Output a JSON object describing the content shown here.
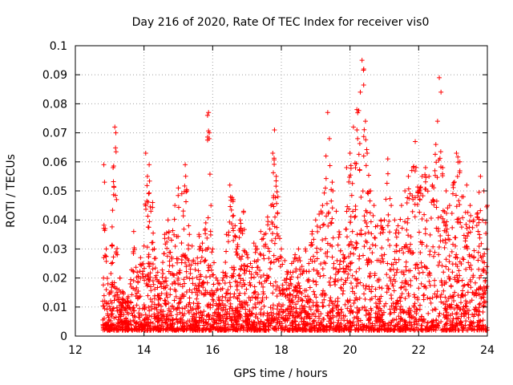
{
  "chart_data": {
    "type": "scatter",
    "title": "Day 216 of 2020, Rate Of TEC Index for receiver vis0",
    "xlabel": "GPS time / hours",
    "ylabel": "ROTI / TECUs",
    "xlim": [
      12,
      24
    ],
    "ylim": [
      0,
      0.1
    ],
    "x_ticks": [
      "12",
      "14",
      "16",
      "18",
      "20",
      "22",
      "24"
    ],
    "y_ticks": [
      "0",
      "0.01",
      "0.02",
      "0.03",
      "0.04",
      "0.05",
      "0.06",
      "0.07",
      "0.08",
      "0.09",
      "0.1"
    ],
    "grid": true,
    "marker": "+",
    "marker_color": "#ff0000",
    "series": [
      {
        "name": "ROTI",
        "note": "dense scatter of several thousand points; representative envelope of the data",
        "x": [
          12.8,
          12.82,
          12.83,
          12.85,
          12.87,
          12.9,
          12.95,
          13.0,
          13.05,
          13.1,
          13.15,
          13.18,
          13.2,
          13.22,
          13.3,
          13.4,
          13.5,
          13.6,
          13.7,
          13.8,
          13.9,
          14.0,
          14.05,
          14.1,
          14.15,
          14.2,
          14.25,
          14.3,
          14.4,
          14.5,
          14.6,
          14.7,
          14.8,
          14.9,
          15.0,
          15.1,
          15.2,
          15.25,
          15.3,
          15.4,
          15.5,
          15.6,
          15.7,
          15.8,
          15.85,
          15.88,
          15.9,
          15.95,
          16.0,
          16.1,
          16.2,
          16.3,
          16.4,
          16.5,
          16.6,
          16.7,
          16.8,
          16.9,
          17.0,
          17.1,
          17.2,
          17.3,
          17.4,
          17.5,
          17.6,
          17.7,
          17.75,
          17.8,
          17.85,
          17.9,
          18.0,
          18.1,
          18.2,
          18.3,
          18.4,
          18.5,
          18.6,
          18.7,
          18.8,
          18.9,
          19.0,
          19.1,
          19.2,
          19.3,
          19.35,
          19.4,
          19.5,
          19.6,
          19.7,
          19.8,
          19.9,
          20.0,
          20.1,
          20.2,
          20.3,
          20.35,
          20.4,
          20.45,
          20.5,
          20.6,
          20.7,
          20.8,
          20.9,
          21.0,
          21.1,
          21.2,
          21.3,
          21.4,
          21.5,
          21.6,
          21.7,
          21.8,
          21.9,
          22.0,
          22.1,
          22.2,
          22.3,
          22.4,
          22.5,
          22.55,
          22.6,
          22.65,
          22.7,
          22.8,
          22.9,
          23.0,
          23.1,
          23.2,
          23.3,
          23.4,
          23.5,
          23.6,
          23.7,
          23.8,
          23.9,
          24.0
        ],
        "y": [
          0.012,
          0.02,
          0.059,
          0.053,
          0.037,
          0.03,
          0.018,
          0.015,
          0.025,
          0.058,
          0.072,
          0.07,
          0.047,
          0.028,
          0.02,
          0.015,
          0.012,
          0.018,
          0.036,
          0.022,
          0.027,
          0.031,
          0.063,
          0.055,
          0.059,
          0.043,
          0.046,
          0.03,
          0.022,
          0.018,
          0.035,
          0.04,
          0.033,
          0.045,
          0.051,
          0.049,
          0.059,
          0.05,
          0.038,
          0.031,
          0.025,
          0.035,
          0.032,
          0.039,
          0.076,
          0.077,
          0.07,
          0.045,
          0.03,
          0.02,
          0.018,
          0.022,
          0.035,
          0.052,
          0.047,
          0.03,
          0.04,
          0.043,
          0.028,
          0.025,
          0.032,
          0.03,
          0.036,
          0.035,
          0.041,
          0.045,
          0.063,
          0.071,
          0.055,
          0.048,
          0.03,
          0.026,
          0.022,
          0.025,
          0.028,
          0.03,
          0.024,
          0.03,
          0.025,
          0.036,
          0.04,
          0.042,
          0.045,
          0.062,
          0.077,
          0.068,
          0.05,
          0.043,
          0.035,
          0.028,
          0.058,
          0.063,
          0.072,
          0.078,
          0.084,
          0.095,
          0.092,
          0.074,
          0.063,
          0.05,
          0.045,
          0.038,
          0.04,
          0.04,
          0.061,
          0.045,
          0.04,
          0.038,
          0.045,
          0.05,
          0.055,
          0.057,
          0.067,
          0.05,
          0.055,
          0.058,
          0.055,
          0.052,
          0.066,
          0.074,
          0.089,
          0.084,
          0.058,
          0.05,
          0.045,
          0.052,
          0.063,
          0.06,
          0.048,
          0.052,
          0.045,
          0.04,
          0.042,
          0.055,
          0.05,
          0.045
        ]
      }
    ]
  }
}
